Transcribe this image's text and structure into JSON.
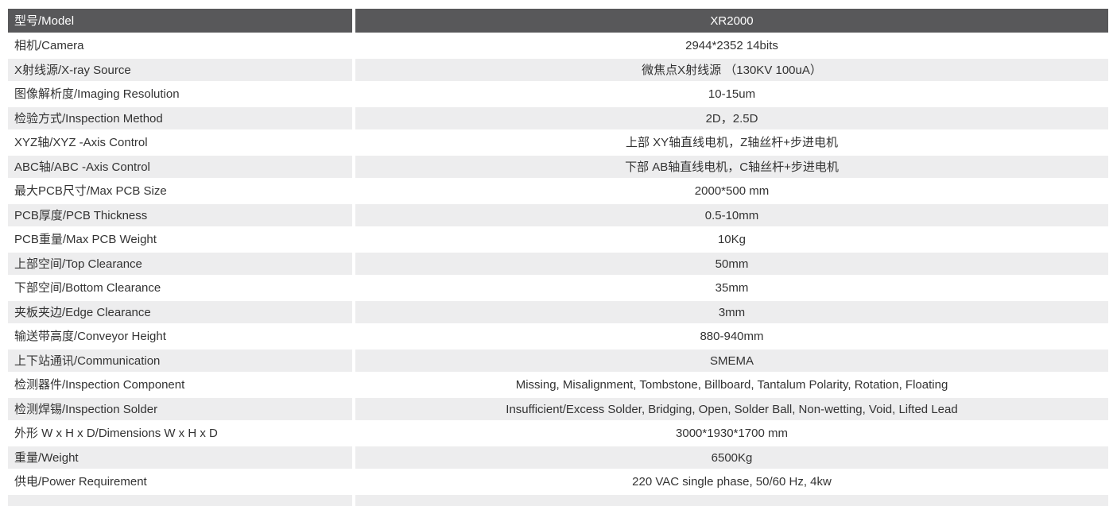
{
  "colors": {
    "header_bg": "#58585a",
    "header_text": "#ffffff",
    "row_alt_bg": "#ededee",
    "row_bg": "#ffffff",
    "text": "#333333"
  },
  "table": {
    "header": {
      "label": "型号/Model",
      "value": "XR2000"
    },
    "rows": [
      {
        "label": "相机/Camera",
        "value": "2944*2352  14bits"
      },
      {
        "label": "X射线源/X-ray Source",
        "value": "微焦点X射线源 （130KV 100uA）"
      },
      {
        "label": "图像解析度/Imaging Resolution",
        "value": "10-15um"
      },
      {
        "label": "检验方式/Inspection Method",
        "value": "2D，2.5D"
      },
      {
        "label": "XYZ轴/XYZ -Axis  Control",
        "value": "上部 XY轴直线电机，Z轴丝杆+步进电机"
      },
      {
        "label": "ABC轴/ABC -Axis  Control",
        "value": "下部 AB轴直线电机，C轴丝杆+步进电机"
      },
      {
        "label": "最大PCB尺寸/Max PCB Size",
        "value": "2000*500 mm"
      },
      {
        "label": "PCB厚度/PCB Thickness",
        "value": "0.5-10mm"
      },
      {
        "label": "PCB重量/Max PCB Weight",
        "value": "10Kg"
      },
      {
        "label": "上部空间/Top Clearance",
        "value": "50mm"
      },
      {
        "label": "下部空间/Bottom Clearance",
        "value": "35mm"
      },
      {
        "label": "夹板夹边/Edge Clearance",
        "value": "3mm"
      },
      {
        "label": "输送带高度/Conveyor Height",
        "value": "880-940mm"
      },
      {
        "label": "上下站通讯/Communication",
        "value": "SMEMA"
      },
      {
        "label": "检测器件/Inspection Component",
        "value": "Missing, Misalignment, Tombstone, Billboard, Tantalum Polarity, Rotation, Floating"
      },
      {
        "label": "检测焊锡/Inspection Solder",
        "value": "Insufficient/Excess Solder, Bridging, Open, Solder Ball, Non-wetting, Void, Lifted Lead"
      },
      {
        "label": "外形 W x H x D/Dimensions  W x H x D",
        "value": "3000*1930*1700 mm"
      },
      {
        "label": "重量/Weight",
        "value": "6500Kg"
      },
      {
        "label": "供电/Power Requirement",
        "value": "220 VAC single phase, 50/60 Hz, 4kw"
      }
    ],
    "partial_row": {
      "label": "",
      "value": ""
    }
  }
}
